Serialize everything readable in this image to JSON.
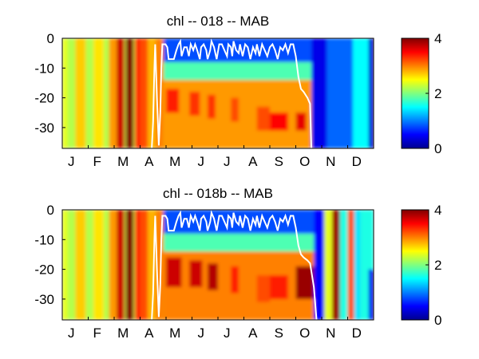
{
  "figure": {
    "background": "#ffffff",
    "colormap": "jet",
    "mixed_layer_line_color": "#ffffff"
  },
  "chart_data": [
    {
      "type": "heatmap",
      "title": "chl -- 018 -- MAB",
      "xlabel": "",
      "ylabel": "",
      "x_tick_labels": [
        "J",
        "F",
        "M",
        "A",
        "M",
        "J",
        "J",
        "A",
        "S",
        "O",
        "N",
        "D"
      ],
      "x_range_months": [
        0,
        12
      ],
      "ylim": [
        -37,
        0
      ],
      "y_ticks": [
        0,
        -10,
        -20,
        -30
      ],
      "color_range": [
        0,
        4
      ],
      "colorbar_ticks": [
        0,
        2,
        4
      ],
      "mixed_layer_depth": [
        [
          3.45,
          -37
        ],
        [
          3.5,
          -28
        ],
        [
          3.55,
          -10
        ],
        [
          3.58,
          -2
        ],
        [
          3.65,
          -20
        ],
        [
          3.72,
          -36
        ],
        [
          3.78,
          -25
        ],
        [
          3.82,
          -10
        ],
        [
          3.86,
          -2
        ],
        [
          3.92,
          -2
        ],
        [
          3.98,
          -2
        ],
        [
          4.05,
          -3
        ],
        [
          4.1,
          -7
        ],
        [
          4.3,
          -7
        ],
        [
          4.4,
          -4
        ],
        [
          4.48,
          -2
        ],
        [
          4.55,
          -1
        ],
        [
          4.6,
          -6
        ],
        [
          4.7,
          -3
        ],
        [
          4.8,
          -3
        ],
        [
          4.88,
          -6
        ],
        [
          4.95,
          -2
        ],
        [
          5.05,
          -4
        ],
        [
          5.12,
          -2
        ],
        [
          5.2,
          -4
        ],
        [
          5.3,
          -7
        ],
        [
          5.35,
          -3
        ],
        [
          5.45,
          -2
        ],
        [
          5.55,
          -4
        ],
        [
          5.6,
          -7
        ],
        [
          5.7,
          -4
        ],
        [
          5.75,
          -1
        ],
        [
          5.85,
          -3
        ],
        [
          5.95,
          -7
        ],
        [
          6.05,
          -2
        ],
        [
          6.15,
          -2
        ],
        [
          6.25,
          -4
        ],
        [
          6.35,
          -6
        ],
        [
          6.4,
          -2
        ],
        [
          6.5,
          -3
        ],
        [
          6.55,
          -6
        ],
        [
          6.6,
          -1
        ],
        [
          6.7,
          -4
        ],
        [
          6.8,
          -5
        ],
        [
          6.85,
          -2
        ],
        [
          6.95,
          -6
        ],
        [
          7.05,
          -2
        ],
        [
          7.15,
          -3
        ],
        [
          7.25,
          -7
        ],
        [
          7.35,
          -3
        ],
        [
          7.45,
          -5
        ],
        [
          7.5,
          -2
        ],
        [
          7.6,
          -6
        ],
        [
          7.7,
          -2
        ],
        [
          7.8,
          -4
        ],
        [
          7.9,
          -6
        ],
        [
          8.0,
          -3
        ],
        [
          8.1,
          -2
        ],
        [
          8.2,
          -4
        ],
        [
          8.3,
          -7
        ],
        [
          8.4,
          -3
        ],
        [
          8.5,
          -4
        ],
        [
          8.6,
          -2
        ],
        [
          8.7,
          -5
        ],
        [
          8.8,
          -2
        ],
        [
          8.9,
          -2
        ],
        [
          9.0,
          -6
        ],
        [
          9.1,
          -13
        ],
        [
          9.2,
          -17
        ],
        [
          9.3,
          -18
        ],
        [
          9.45,
          -20
        ],
        [
          9.55,
          -22
        ],
        [
          9.6,
          -37
        ]
      ],
      "field_regions": [
        {
          "months": [
            0,
            12
          ],
          "depth": [
            -37,
            0
          ],
          "chl": 2.2
        },
        {
          "months": [
            0,
            0.2
          ],
          "depth": [
            -37,
            0
          ],
          "chl": 2.4
        },
        {
          "months": [
            0.5,
            0.9
          ],
          "depth": [
            -37,
            0
          ],
          "chl": 2.7
        },
        {
          "months": [
            1.2,
            1.6
          ],
          "depth": [
            -37,
            0
          ],
          "chl": 2.6
        },
        {
          "months": [
            1.8,
            2.1
          ],
          "depth": [
            -37,
            0
          ],
          "chl": 2.9
        },
        {
          "months": [
            2.1,
            2.4
          ],
          "depth": [
            -37,
            0
          ],
          "chl": 3.7
        },
        {
          "months": [
            2.45,
            2.75
          ],
          "depth": [
            -37,
            0
          ],
          "chl": 4.0
        },
        {
          "months": [
            2.8,
            3.0
          ],
          "depth": [
            -37,
            0
          ],
          "chl": 3.4
        },
        {
          "months": [
            3.0,
            3.3
          ],
          "depth": [
            -37,
            0
          ],
          "chl": 3.2
        },
        {
          "months": [
            3.3,
            3.6
          ],
          "depth": [
            -37,
            0
          ],
          "chl": 2.8
        },
        {
          "months": [
            3.6,
            3.9
          ],
          "depth": [
            -37,
            0
          ],
          "chl": 3.0
        },
        {
          "months": [
            3.9,
            9.6
          ],
          "depth": [
            -37,
            -14
          ],
          "chl": 2.9
        },
        {
          "months": [
            3.9,
            9.6
          ],
          "depth": [
            -14,
            -8
          ],
          "chl": 1.8
        },
        {
          "months": [
            3.9,
            9.6
          ],
          "depth": [
            -8,
            0
          ],
          "chl": 0.8
        },
        {
          "months": [
            4.0,
            4.5
          ],
          "depth": [
            -25,
            -17
          ],
          "chl": 3.4
        },
        {
          "months": [
            4.9,
            5.3
          ],
          "depth": [
            -26,
            -18
          ],
          "chl": 3.3
        },
        {
          "months": [
            5.6,
            5.9
          ],
          "depth": [
            -27,
            -19
          ],
          "chl": 3.3
        },
        {
          "months": [
            6.5,
            6.8
          ],
          "depth": [
            -28,
            -20
          ],
          "chl": 3.2
        },
        {
          "months": [
            7.5,
            8.0
          ],
          "depth": [
            -31,
            -23
          ],
          "chl": 3.2
        },
        {
          "months": [
            8.0,
            8.7
          ],
          "depth": [
            -31,
            -25
          ],
          "chl": 3.5
        },
        {
          "months": [
            9.0,
            9.4
          ],
          "depth": [
            -31,
            -25
          ],
          "chl": 3.6
        },
        {
          "months": [
            9.6,
            10.2
          ],
          "depth": [
            -37,
            0
          ],
          "chl": 0.4
        },
        {
          "months": [
            10.2,
            11.2
          ],
          "depth": [
            -37,
            0
          ],
          "chl": 0.9
        },
        {
          "months": [
            11.2,
            12.0
          ],
          "depth": [
            -37,
            0
          ],
          "chl": 1.5
        },
        {
          "months": [
            11.8,
            12.0
          ],
          "depth": [
            -37,
            0
          ],
          "chl": 0.3
        }
      ]
    },
    {
      "type": "heatmap",
      "title": "chl -- 018b -- MAB",
      "xlabel": "",
      "ylabel": "",
      "x_tick_labels": [
        "J",
        "F",
        "M",
        "A",
        "M",
        "J",
        "J",
        "A",
        "S",
        "O",
        "N",
        "D"
      ],
      "x_range_months": [
        0,
        12
      ],
      "ylim": [
        -37,
        0
      ],
      "y_ticks": [
        0,
        -10,
        -20,
        -30
      ],
      "color_range": [
        0,
        4
      ],
      "colorbar_ticks": [
        0,
        2,
        4
      ],
      "mixed_layer_depth": [
        [
          3.45,
          -37
        ],
        [
          3.5,
          -28
        ],
        [
          3.55,
          -10
        ],
        [
          3.58,
          -2
        ],
        [
          3.65,
          -20
        ],
        [
          3.72,
          -36
        ],
        [
          3.78,
          -25
        ],
        [
          3.82,
          -10
        ],
        [
          3.86,
          -2
        ],
        [
          3.92,
          -2
        ],
        [
          3.98,
          -2
        ],
        [
          4.05,
          -3
        ],
        [
          4.1,
          -7
        ],
        [
          4.3,
          -7
        ],
        [
          4.4,
          -4
        ],
        [
          4.48,
          -2
        ],
        [
          4.55,
          -1
        ],
        [
          4.6,
          -6
        ],
        [
          4.7,
          -3
        ],
        [
          4.8,
          -3
        ],
        [
          4.88,
          -6
        ],
        [
          4.95,
          -2
        ],
        [
          5.05,
          -4
        ],
        [
          5.12,
          -2
        ],
        [
          5.2,
          -4
        ],
        [
          5.3,
          -7
        ],
        [
          5.35,
          -3
        ],
        [
          5.45,
          -2
        ],
        [
          5.55,
          -4
        ],
        [
          5.6,
          -7
        ],
        [
          5.7,
          -4
        ],
        [
          5.75,
          -1
        ],
        [
          5.85,
          -3
        ],
        [
          5.95,
          -7
        ],
        [
          6.05,
          -2
        ],
        [
          6.15,
          -2
        ],
        [
          6.25,
          -4
        ],
        [
          6.35,
          -6
        ],
        [
          6.4,
          -2
        ],
        [
          6.5,
          -3
        ],
        [
          6.55,
          -6
        ],
        [
          6.6,
          -1
        ],
        [
          6.7,
          -4
        ],
        [
          6.8,
          -5
        ],
        [
          6.85,
          -2
        ],
        [
          6.95,
          -6
        ],
        [
          7.05,
          -2
        ],
        [
          7.15,
          -3
        ],
        [
          7.25,
          -7
        ],
        [
          7.35,
          -3
        ],
        [
          7.45,
          -5
        ],
        [
          7.5,
          -2
        ],
        [
          7.6,
          -6
        ],
        [
          7.7,
          -2
        ],
        [
          7.8,
          -4
        ],
        [
          7.9,
          -6
        ],
        [
          8.0,
          -3
        ],
        [
          8.1,
          -2
        ],
        [
          8.2,
          -4
        ],
        [
          8.3,
          -7
        ],
        [
          8.4,
          -3
        ],
        [
          8.5,
          -4
        ],
        [
          8.6,
          -2
        ],
        [
          8.7,
          -5
        ],
        [
          8.8,
          -2
        ],
        [
          8.9,
          -2
        ],
        [
          9.0,
          -6
        ],
        [
          9.1,
          -12
        ],
        [
          9.2,
          -15
        ],
        [
          9.3,
          -16
        ],
        [
          9.45,
          -17
        ],
        [
          9.55,
          -18
        ],
        [
          9.7,
          -26
        ],
        [
          9.8,
          -37
        ]
      ],
      "field_regions": [
        {
          "months": [
            0,
            12
          ],
          "depth": [
            -37,
            0
          ],
          "chl": 2.2
        },
        {
          "months": [
            0,
            0.2
          ],
          "depth": [
            -37,
            0
          ],
          "chl": 2.4
        },
        {
          "months": [
            0.5,
            0.9
          ],
          "depth": [
            -37,
            0
          ],
          "chl": 2.7
        },
        {
          "months": [
            1.2,
            1.6
          ],
          "depth": [
            -37,
            0
          ],
          "chl": 2.6
        },
        {
          "months": [
            1.8,
            2.1
          ],
          "depth": [
            -37,
            0
          ],
          "chl": 2.9
        },
        {
          "months": [
            2.1,
            2.4
          ],
          "depth": [
            -37,
            0
          ],
          "chl": 3.7
        },
        {
          "months": [
            2.45,
            2.75
          ],
          "depth": [
            -37,
            0
          ],
          "chl": 4.0
        },
        {
          "months": [
            2.8,
            3.0
          ],
          "depth": [
            -37,
            0
          ],
          "chl": 3.4
        },
        {
          "months": [
            3.0,
            3.3
          ],
          "depth": [
            -37,
            0
          ],
          "chl": 3.2
        },
        {
          "months": [
            3.3,
            3.6
          ],
          "depth": [
            -37,
            0
          ],
          "chl": 2.8
        },
        {
          "months": [
            3.6,
            3.9
          ],
          "depth": [
            -37,
            0
          ],
          "chl": 3.0
        },
        {
          "months": [
            3.9,
            9.8
          ],
          "depth": [
            -37,
            -14
          ],
          "chl": 3.0
        },
        {
          "months": [
            3.9,
            9.8
          ],
          "depth": [
            -14,
            -8
          ],
          "chl": 1.8
        },
        {
          "months": [
            3.9,
            9.8
          ],
          "depth": [
            -8,
            0
          ],
          "chl": 0.8
        },
        {
          "months": [
            4.0,
            4.6
          ],
          "depth": [
            -26,
            -16
          ],
          "chl": 3.7
        },
        {
          "months": [
            4.9,
            5.4
          ],
          "depth": [
            -26,
            -17
          ],
          "chl": 3.7
        },
        {
          "months": [
            5.6,
            6.0
          ],
          "depth": [
            -27,
            -18
          ],
          "chl": 3.8
        },
        {
          "months": [
            6.5,
            6.8
          ],
          "depth": [
            -28,
            -19
          ],
          "chl": 3.4
        },
        {
          "months": [
            7.5,
            8.0
          ],
          "depth": [
            -31,
            -22
          ],
          "chl": 3.2
        },
        {
          "months": [
            8.0,
            8.7
          ],
          "depth": [
            -30,
            -22
          ],
          "chl": 3.4
        },
        {
          "months": [
            9.0,
            9.7
          ],
          "depth": [
            -30,
            -19
          ],
          "chl": 3.9
        },
        {
          "months": [
            9.7,
            10.1
          ],
          "depth": [
            -37,
            0
          ],
          "chl": 0.5
        },
        {
          "months": [
            10.1,
            10.4
          ],
          "depth": [
            -37,
            0
          ],
          "chl": 2.4
        },
        {
          "months": [
            10.4,
            10.7
          ],
          "depth": [
            -37,
            0
          ],
          "chl": 3.9
        },
        {
          "months": [
            10.7,
            11.0
          ],
          "depth": [
            -37,
            0
          ],
          "chl": 1.6
        },
        {
          "months": [
            11.0,
            11.25
          ],
          "depth": [
            -37,
            0
          ],
          "chl": 3.2
        },
        {
          "months": [
            11.25,
            11.5
          ],
          "depth": [
            -37,
            0
          ],
          "chl": 1.4
        },
        {
          "months": [
            11.5,
            12.0
          ],
          "depth": [
            -37,
            0
          ],
          "chl": 1.6
        },
        {
          "months": [
            11.8,
            12.0
          ],
          "depth": [
            -37,
            -20
          ],
          "chl": 0.4
        }
      ]
    }
  ]
}
